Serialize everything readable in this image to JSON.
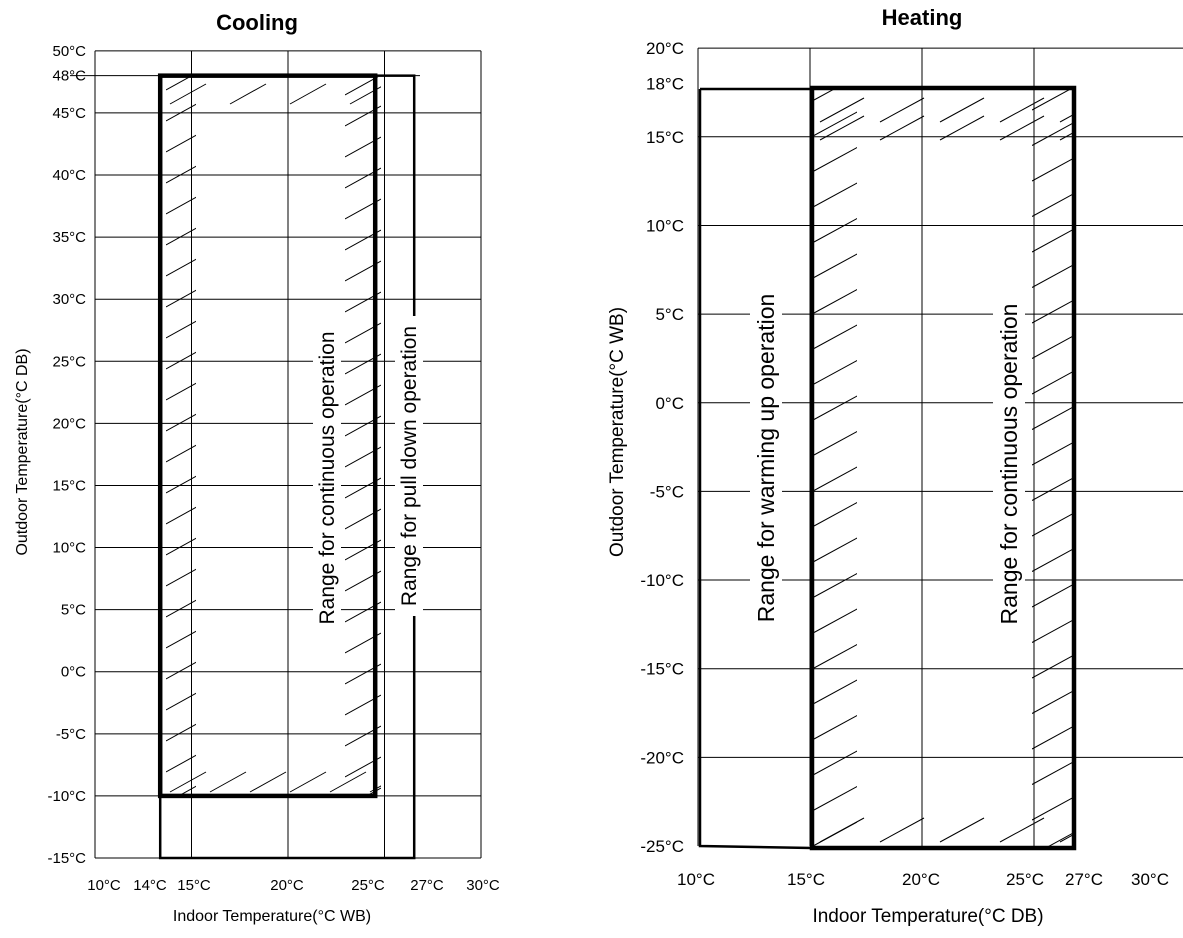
{
  "chart_data": [
    {
      "type": "area",
      "title": "Cooling",
      "xlabel": "Indoor Temperature(°C WB)",
      "ylabel": "Outdoor Temperature(°C DB)",
      "x_ticks": [
        {
          "v": 10,
          "label": "10°C"
        },
        {
          "v": 14,
          "label": "14°C"
        },
        {
          "v": 15,
          "label": "15°C"
        },
        {
          "v": 20,
          "label": "20°C"
        },
        {
          "v": 25,
          "label": "25°C"
        },
        {
          "v": 27,
          "label": "27°C"
        },
        {
          "v": 30,
          "label": "30°C"
        }
      ],
      "x_gridlines": [
        15,
        20,
        25
      ],
      "y_ticks": [
        {
          "v": 50,
          "label": "50°C"
        },
        {
          "v": 48,
          "label": "48°C"
        },
        {
          "v": 45,
          "label": "45°C"
        },
        {
          "v": 40,
          "label": "40°C"
        },
        {
          "v": 35,
          "label": "35°C"
        },
        {
          "v": 30,
          "label": "30°C"
        },
        {
          "v": 25,
          "label": "25°C"
        },
        {
          "v": 20,
          "label": "20°C"
        },
        {
          "v": 15,
          "label": "15°C"
        },
        {
          "v": 10,
          "label": "10°C"
        },
        {
          "v": 5,
          "label": "5°C"
        },
        {
          "v": 0,
          "label": "0°C"
        },
        {
          "v": -5,
          "label": "-5°C"
        },
        {
          "v": -10,
          "label": "-10°C"
        },
        {
          "v": -15,
          "label": "-15°C"
        }
      ],
      "xlim": [
        10,
        30
      ],
      "ylim": [
        -15,
        50
      ],
      "regions": [
        {
          "name": "Range for continuous operation",
          "x": [
            14,
            25
          ],
          "y": [
            -10,
            48
          ],
          "style": "bold",
          "hatched": true
        },
        {
          "name": "Range for pull down operation",
          "x": [
            14,
            27
          ],
          "y": [
            -15,
            48
          ],
          "style": "thin",
          "hatched": false
        }
      ],
      "grid": true
    },
    {
      "type": "area",
      "title": "Heating",
      "xlabel": "Indoor Temperature(°C DB)",
      "ylabel": "Outdoor Temperature(°C WB)",
      "x_ticks": [
        {
          "v": 10,
          "label": "10°C"
        },
        {
          "v": 15,
          "label": "15°C"
        },
        {
          "v": 20,
          "label": "20°C"
        },
        {
          "v": 25,
          "label": "25°C"
        },
        {
          "v": 27,
          "label": "27°C"
        },
        {
          "v": 30,
          "label": "30°C"
        }
      ],
      "x_gridlines": [
        15,
        20,
        25
      ],
      "y_ticks": [
        {
          "v": 20,
          "label": "20°C"
        },
        {
          "v": 18,
          "label": "18°C"
        },
        {
          "v": 15,
          "label": "15°C"
        },
        {
          "v": 10,
          "label": "10°C"
        },
        {
          "v": 5,
          "label": "5°C"
        },
        {
          "v": 0,
          "label": "0°C"
        },
        {
          "v": -5,
          "label": "-5°C"
        },
        {
          "v": -10,
          "label": "-10°C"
        },
        {
          "v": -15,
          "label": "-15°C"
        },
        {
          "v": -20,
          "label": "-20°C"
        },
        {
          "v": -25,
          "label": "-25°C"
        }
      ],
      "xlim": [
        10,
        30
      ],
      "ylim": [
        -25,
        20
      ],
      "regions": [
        {
          "name": "Range for continuous operation",
          "x": [
            15,
            27
          ],
          "y": [
            -25,
            18
          ],
          "style": "bold",
          "hatched": true
        },
        {
          "name": "Range for warming up operation",
          "x": [
            10,
            15
          ],
          "y": [
            -25,
            18
          ],
          "style": "thin",
          "hatched": false
        }
      ],
      "grid": true
    }
  ]
}
